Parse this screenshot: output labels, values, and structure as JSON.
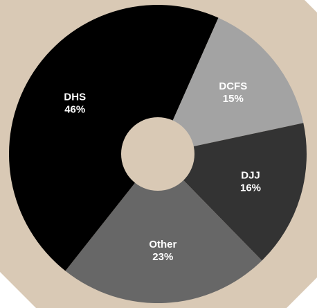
{
  "chart_data": {
    "type": "donut",
    "categories": [
      "DCFS",
      "DJJ",
      "Other",
      "DHS"
    ],
    "values": [
      15,
      16,
      23,
      46
    ],
    "value_labels": [
      "15%",
      "16%",
      "23%",
      "46%"
    ],
    "colors": [
      "#a3a3a3",
      "#333333",
      "#676767",
      "#000000"
    ],
    "background": "#d9c9b5"
  }
}
